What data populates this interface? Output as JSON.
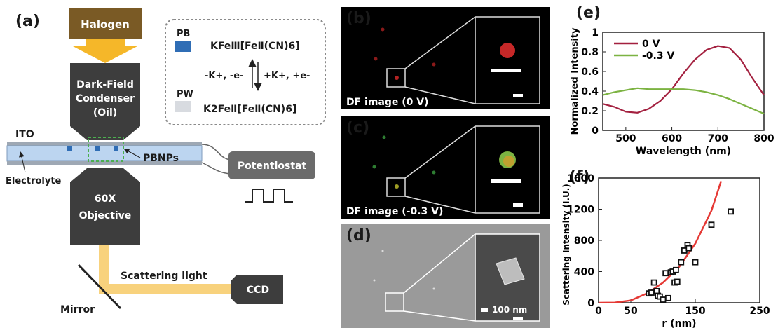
{
  "panel_labels": {
    "a": "(a)",
    "b": "(b)",
    "c": "(c)",
    "d": "(d)",
    "e": "(e)",
    "f": "(f)"
  },
  "setup": {
    "halogen": "Halogen",
    "condenser_line1": "Dark-Field",
    "condenser_line2": "Condenser",
    "condenser_line3": "(Oil)",
    "ito": "ITO",
    "pbnps": "PBNPs",
    "electrolyte": "Electrolyte",
    "objective_line1": "60X",
    "objective_line2": "Objective",
    "potentiostat": "Potentiostat",
    "scattering_light": "Scattering light",
    "ccd": "CCD",
    "mirror": "Mirror"
  },
  "reaction": {
    "pb_label": "PB",
    "pw_label": "PW",
    "pb_formula": "KFeⅢ[FeⅡ(CN)6]",
    "oxidation": "-K+, -e-",
    "reduction": "+K+, +e-",
    "pw_formula": "K2FeⅡ[FeⅡ(CN)6]",
    "pb_color": "#2f6db5",
    "pw_color": "#d8dbe0"
  },
  "images": {
    "b_caption": "DF image (0 V)",
    "c_caption": "DF image (-0.3 V)",
    "d_scale": "100 nm"
  },
  "chart_data": [
    {
      "type": "line",
      "xlabel": "Wavelength (nm)",
      "ylabel": "Normalized Intensity",
      "xlim": [
        450,
        800
      ],
      "ylim": [
        0,
        1
      ],
      "xticks": [
        500,
        600,
        700,
        800
      ],
      "yticks": [
        0,
        0.2,
        0.4,
        0.6,
        0.8,
        1
      ],
      "ytick_labels": [
        "0",
        "0.2",
        "0.4",
        "0.6",
        "0.8",
        "1"
      ],
      "legend_placement": "top-left",
      "series": [
        {
          "name": "0 V",
          "color": "#a3203f",
          "x": [
            450,
            475,
            500,
            525,
            550,
            575,
            600,
            625,
            650,
            675,
            700,
            725,
            750,
            775,
            800
          ],
          "values": [
            0.27,
            0.24,
            0.19,
            0.18,
            0.22,
            0.3,
            0.42,
            0.58,
            0.72,
            0.82,
            0.86,
            0.84,
            0.72,
            0.53,
            0.36
          ]
        },
        {
          "name": "-0.3 V",
          "color": "#7cb342",
          "x": [
            450,
            475,
            500,
            525,
            550,
            575,
            600,
            625,
            650,
            675,
            700,
            725,
            750,
            775,
            800
          ],
          "values": [
            0.36,
            0.39,
            0.41,
            0.43,
            0.42,
            0.42,
            0.42,
            0.42,
            0.41,
            0.39,
            0.36,
            0.32,
            0.27,
            0.22,
            0.17
          ]
        }
      ]
    },
    {
      "type": "scatter",
      "xlabel": "r (nm)",
      "ylabel": "Scattering Intensity (I.U.)",
      "xlim": [
        0,
        250
      ],
      "ylim": [
        0,
        1600
      ],
      "xticks": [
        0,
        50,
        150,
        250
      ],
      "yticks": [
        0,
        400,
        800,
        1200,
        1600
      ],
      "points": {
        "x": [
          78,
          82,
          86,
          90,
          92,
          95,
          100,
          104,
          108,
          112,
          115,
          118,
          120,
          122,
          128,
          133,
          138,
          140,
          150,
          175,
          205
        ],
        "values": [
          120,
          130,
          260,
          150,
          90,
          80,
          40,
          380,
          60,
          390,
          400,
          260,
          420,
          270,
          520,
          670,
          740,
          700,
          520,
          1000,
          1170
        ]
      },
      "fit": {
        "color": "#e53935",
        "x": [
          0,
          25,
          50,
          75,
          100,
          125,
          150,
          175,
          190
        ],
        "values": [
          0,
          3,
          30,
          120,
          260,
          460,
          760,
          1180,
          1560
        ]
      }
    }
  ]
}
